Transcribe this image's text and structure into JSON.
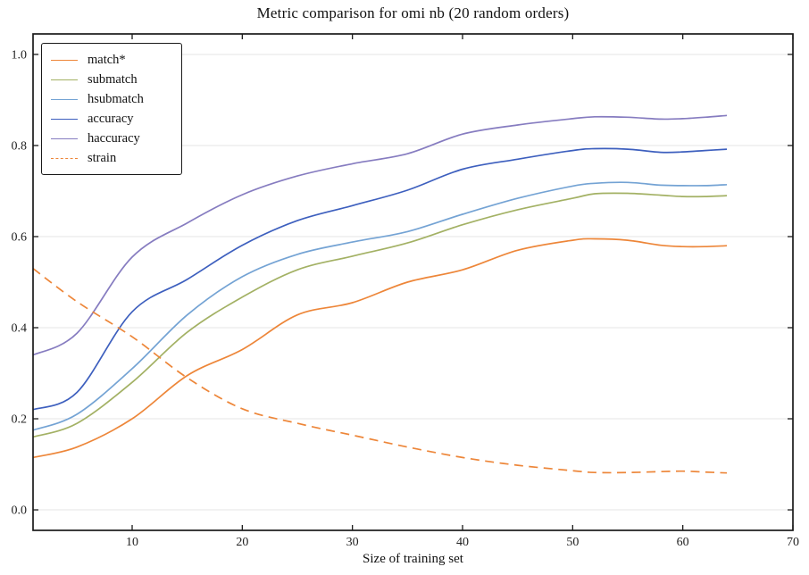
{
  "chart_data": {
    "type": "line",
    "title": "Metric comparison for omi nb (20 random orders)",
    "xlabel": "Size of training set",
    "ylabel": "",
    "xlim": [
      1,
      70
    ],
    "ylim": [
      -0.045,
      1.045
    ],
    "x_ticks": [
      10,
      20,
      30,
      40,
      50,
      60,
      70
    ],
    "y_ticks": [
      0.0,
      0.2,
      0.4,
      0.6,
      0.8,
      1.0
    ],
    "grid": "horizontal",
    "grid_color": "#e6e6e6",
    "axis_color": "#1a1a1a",
    "tick_label_color": "#222222",
    "legend_position": "upper-left",
    "x": [
      1,
      5,
      10,
      15,
      20,
      25,
      30,
      35,
      40,
      45,
      50,
      52,
      55,
      58,
      60,
      62,
      64
    ],
    "series": [
      {
        "name": "match*",
        "color": "#ed8639",
        "dash": false,
        "values": [
          0.115,
          0.138,
          0.2,
          0.295,
          0.352,
          0.428,
          0.455,
          0.5,
          0.527,
          0.57,
          0.592,
          0.595,
          0.592,
          0.581,
          0.578,
          0.578,
          0.58
        ]
      },
      {
        "name": "submatch",
        "color": "#a3b164",
        "dash": false,
        "values": [
          0.16,
          0.19,
          0.28,
          0.39,
          0.467,
          0.527,
          0.557,
          0.586,
          0.626,
          0.659,
          0.684,
          0.694,
          0.695,
          0.691,
          0.688,
          0.688,
          0.69
        ]
      },
      {
        "name": "hsubmatch",
        "color": "#74a3d4",
        "dash": false,
        "values": [
          0.175,
          0.21,
          0.31,
          0.428,
          0.512,
          0.561,
          0.588,
          0.611,
          0.649,
          0.684,
          0.711,
          0.717,
          0.719,
          0.713,
          0.712,
          0.712,
          0.714
        ]
      },
      {
        "name": "accuracy",
        "color": "#3d5fbe",
        "dash": false,
        "values": [
          0.22,
          0.258,
          0.435,
          0.506,
          0.581,
          0.635,
          0.668,
          0.702,
          0.748,
          0.77,
          0.789,
          0.793,
          0.792,
          0.785,
          0.786,
          0.789,
          0.792
        ]
      },
      {
        "name": "haccuracy",
        "color": "#867cc0",
        "dash": false,
        "values": [
          0.34,
          0.388,
          0.555,
          0.63,
          0.692,
          0.733,
          0.76,
          0.782,
          0.825,
          0.845,
          0.859,
          0.863,
          0.862,
          0.858,
          0.859,
          0.862,
          0.866
        ]
      },
      {
        "name": "strain",
        "color": "#ed8639",
        "dash": true,
        "values": [
          0.53,
          0.457,
          0.38,
          0.29,
          0.222,
          0.19,
          0.164,
          0.138,
          0.115,
          0.098,
          0.086,
          0.082,
          0.082,
          0.084,
          0.085,
          0.083,
          0.081
        ]
      }
    ]
  }
}
